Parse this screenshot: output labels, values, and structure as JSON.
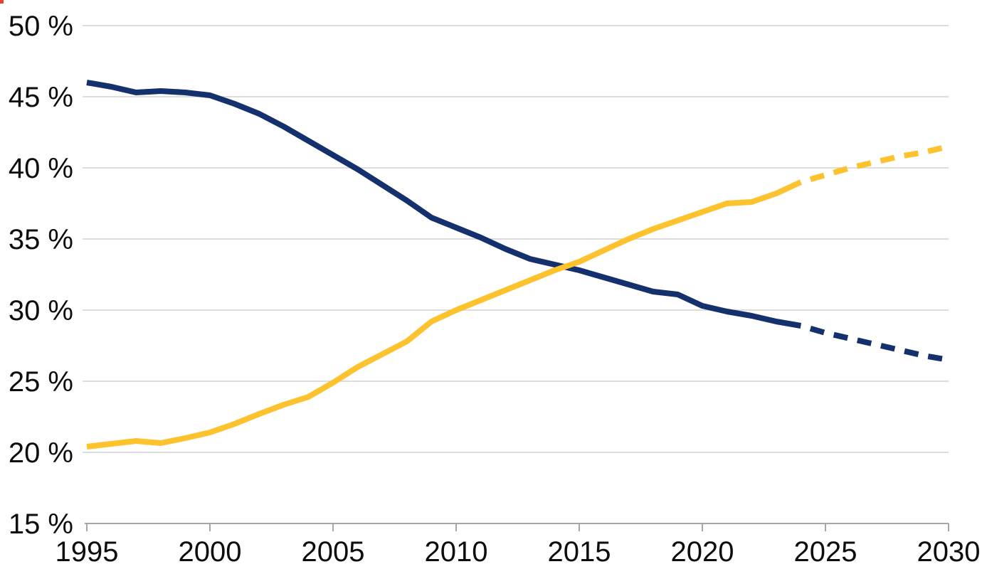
{
  "page": {
    "background": "#ffffff",
    "corner_artifact": {
      "color": "#e8432d"
    }
  },
  "chart_data": {
    "type": "line",
    "title": "",
    "xlabel": "",
    "ylabel": "",
    "unit": "%",
    "xlim": [
      1995,
      2030
    ],
    "ylim": [
      15,
      50
    ],
    "grid": true,
    "legend_position": "none",
    "x": [
      1995,
      1996,
      1997,
      1998,
      1999,
      2000,
      2001,
      2002,
      2003,
      2004,
      2005,
      2006,
      2007,
      2008,
      2009,
      2010,
      2011,
      2012,
      2013,
      2014,
      2015,
      2016,
      2017,
      2018,
      2019,
      2020,
      2021,
      2022,
      2023,
      2024,
      2025,
      2026,
      2027,
      2028,
      2029,
      2030
    ],
    "x_ticks": [
      1995,
      2000,
      2005,
      2010,
      2015,
      2020,
      2025,
      2030
    ],
    "x_tick_labels": [
      "1995",
      "2000",
      "2005",
      "2010",
      "2015",
      "2020",
      "2025",
      "2030"
    ],
    "y_tick_values": [
      50,
      45,
      40,
      35,
      30,
      25,
      20,
      15
    ],
    "y_tick_labels": [
      "50 %",
      "45 %",
      "40 %",
      "35 %",
      "30 %",
      "25 %",
      "20 %",
      "15 %"
    ],
    "projection_start_year": 2024,
    "projection_style": "dashed",
    "series": [
      {
        "name": "dark-blue-declining-share",
        "color": "#14316e",
        "values": [
          46.0,
          45.7,
          45.3,
          45.4,
          45.3,
          45.1,
          44.5,
          43.8,
          42.9,
          41.9,
          40.9,
          39.9,
          38.8,
          37.7,
          36.5,
          35.8,
          35.1,
          34.3,
          33.6,
          33.2,
          32.8,
          32.3,
          31.8,
          31.3,
          31.1,
          30.3,
          29.9,
          29.6,
          29.2,
          28.9,
          28.4,
          28.0,
          27.6,
          27.2,
          26.8,
          26.5
        ]
      },
      {
        "name": "yellow-rising-share",
        "color": "#fcc32f",
        "values": [
          20.4,
          20.6,
          20.8,
          20.65,
          21.0,
          21.4,
          22.0,
          22.7,
          23.35,
          23.9,
          24.9,
          26.0,
          26.9,
          27.8,
          29.2,
          30.0,
          30.7,
          31.4,
          32.1,
          32.8,
          33.4,
          34.2,
          35.0,
          35.7,
          36.3,
          36.9,
          37.5,
          37.6,
          38.2,
          39.0,
          39.5,
          40.0,
          40.4,
          40.8,
          41.1,
          41.5
        ]
      }
    ],
    "style": {
      "gridline_color": "#d2d2d2",
      "axis_color": "#a6a6a6",
      "label_color": "#0d0d0d",
      "line_width": 8
    }
  }
}
